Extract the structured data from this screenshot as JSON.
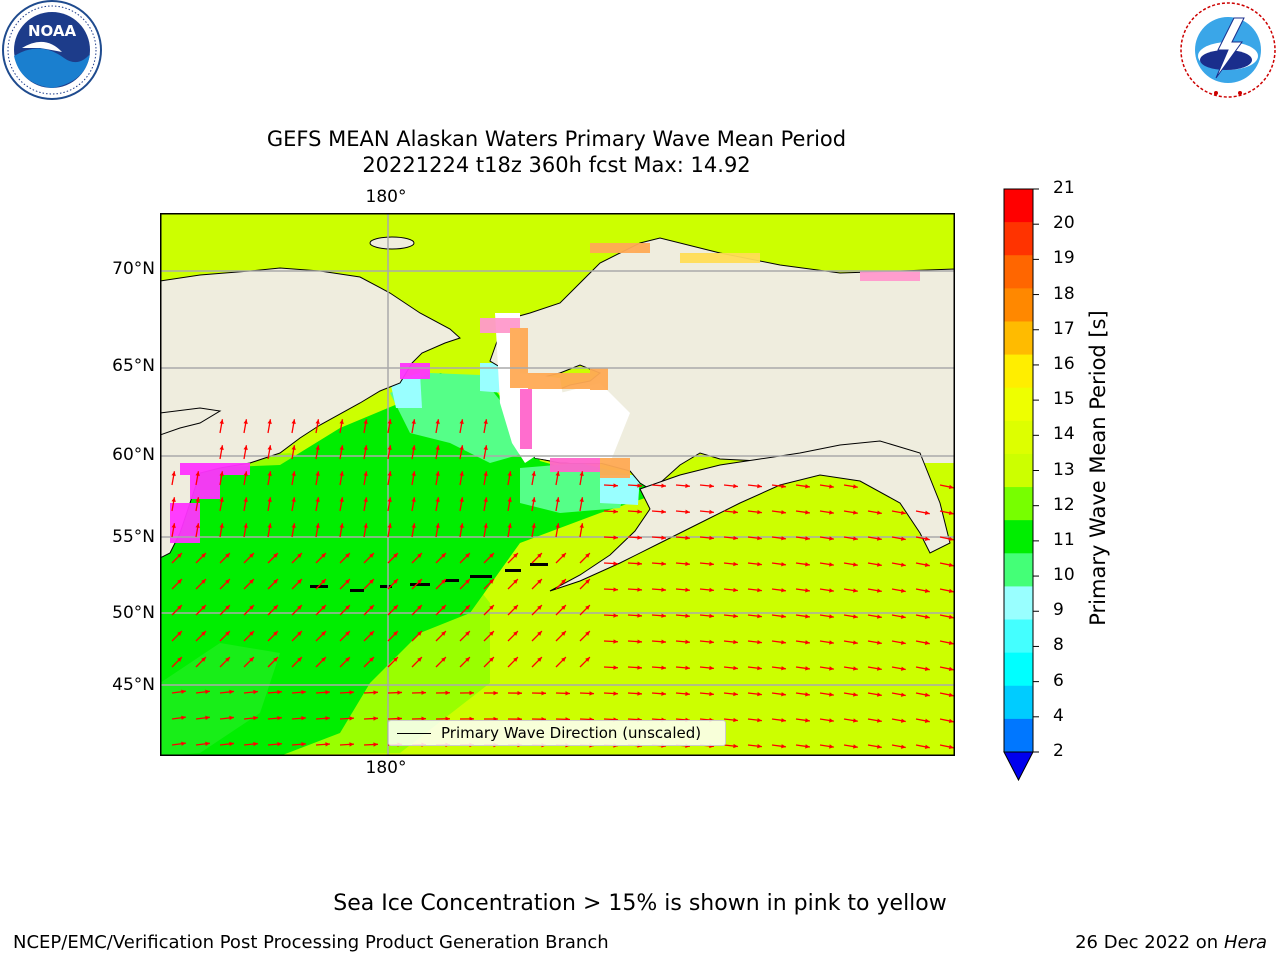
{
  "title": {
    "line1": "GEFS MEAN Alaskan Waters Primary Wave Mean Period",
    "line2": "20221224 t18z 360h fcst   Max: 14.92"
  },
  "logos": {
    "left": {
      "icon": "noaa-logo",
      "text": "NOAA"
    },
    "right": {
      "icon": "nws-logo"
    }
  },
  "map": {
    "lon_labels": [
      "180°",
      "180°"
    ],
    "lat_labels": [
      "70°N",
      "65°N",
      "60°N",
      "55°N",
      "50°N",
      "45°N"
    ],
    "ocean_colors": {
      "yellow": "#ccff00",
      "lime": "#99ff00",
      "green": "#00ee00",
      "seafoam": "#55ff88",
      "cyan": "#99ffff",
      "land": "#efedde",
      "ice_pink": "#ff33ff",
      "ice_orange": "#ffaa55"
    },
    "arrow_color": "#ff0000",
    "legend": "Primary Wave Direction (unscaled)"
  },
  "colorbar": {
    "label": "Primary Wave Mean Period [s]",
    "ticks": [
      "21",
      "20",
      "19",
      "18",
      "17",
      "16",
      "15",
      "14",
      "13",
      "12",
      "11",
      "10",
      "9",
      "8",
      "6",
      "4",
      "2"
    ],
    "colors": [
      "#ff0000",
      "#ff3300",
      "#ff6600",
      "#ff8800",
      "#ffbb00",
      "#ffee00",
      "#eeff00",
      "#ddff00",
      "#ccff00",
      "#77ff00",
      "#00ee00",
      "#44ff77",
      "#99ffff",
      "#44ffff",
      "#00ffff",
      "#00ccff",
      "#0077ff"
    ],
    "extend_color": "#0000ee"
  },
  "footer": {
    "note": "Sea Ice Concentration > 15% is shown in pink to yellow",
    "org": "NCEP/EMC/Verification Post Processing Product Generation Branch",
    "date": "26 Dec 2022 on",
    "host": "Hera"
  }
}
